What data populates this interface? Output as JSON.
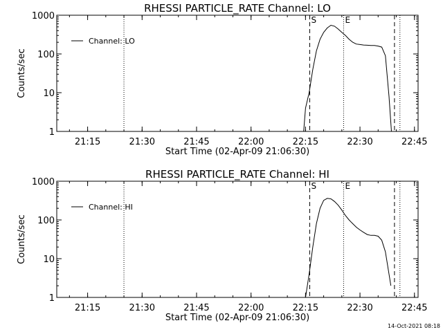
{
  "timestamp": "14-Oct-2021 08:18",
  "chart_data": [
    {
      "type": "line",
      "title": "RHESSI PARTICLE_RATE Channel: LO",
      "xlabel": "Start Time (02-Apr-09 21:06:30)",
      "ylabel": "Counts/sec",
      "yscale": "log",
      "ylim": [
        1,
        1000
      ],
      "y_ticks": [
        "1",
        "10",
        "100",
        "1000"
      ],
      "xlim": [
        "21:06:30",
        "22:46:00"
      ],
      "x_ticks": [
        "21:15",
        "21:30",
        "21:45",
        "22:00",
        "22:15",
        "22:30",
        "22:45"
      ],
      "legend": {
        "position": "top-left",
        "entries": [
          "Channel: LO"
        ]
      },
      "markers": [
        {
          "label": "S",
          "time": "22:16:10",
          "style": "dashed"
        },
        {
          "label": "E",
          "time": "22:25:30",
          "style": "dotted"
        }
      ],
      "vlines": [
        {
          "time": "21:25:00",
          "style": "dotted"
        },
        {
          "time": "22:39:30",
          "style": "dashed"
        },
        {
          "time": "22:41:00",
          "style": "dotted"
        }
      ],
      "series": [
        {
          "name": "Channel: LO",
          "x": [
            "22:14:30",
            "22:15:00",
            "22:16:00",
            "22:17:00",
            "22:18:00",
            "22:19:00",
            "22:20:00",
            "22:21:00",
            "22:22:00",
            "22:23:00",
            "22:24:00",
            "22:25:00",
            "22:26:00",
            "22:27:00",
            "22:28:00",
            "22:29:00",
            "22:30:00",
            "22:31:00",
            "22:32:00",
            "22:33:00",
            "22:34:00",
            "22:35:00",
            "22:36:00",
            "22:37:00",
            "22:38:00",
            "22:38:40"
          ],
          "y": [
            1,
            4,
            10,
            40,
            120,
            240,
            360,
            470,
            550,
            520,
            440,
            360,
            300,
            240,
            200,
            180,
            175,
            170,
            168,
            165,
            165,
            160,
            150,
            90,
            8,
            1
          ]
        }
      ]
    },
    {
      "type": "line",
      "title": "RHESSI PARTICLE_RATE Channel: HI",
      "xlabel": "Start Time (02-Apr-09 21:06:30)",
      "ylabel": "Counts/sec",
      "yscale": "log",
      "ylim": [
        1,
        1000
      ],
      "y_ticks": [
        "1",
        "10",
        "100",
        "1000"
      ],
      "xlim": [
        "21:06:30",
        "22:46:00"
      ],
      "x_ticks": [
        "21:15",
        "21:30",
        "21:45",
        "22:00",
        "22:15",
        "22:30",
        "22:45"
      ],
      "legend": {
        "position": "top-left",
        "entries": [
          "Channel: HI"
        ]
      },
      "markers": [
        {
          "label": "S",
          "time": "22:16:10",
          "style": "dashed"
        },
        {
          "label": "E",
          "time": "22:25:30",
          "style": "dotted"
        }
      ],
      "vlines": [
        {
          "time": "21:25:00",
          "style": "dotted"
        },
        {
          "time": "22:39:30",
          "style": "dashed"
        },
        {
          "time": "22:41:00",
          "style": "dotted"
        }
      ],
      "series": [
        {
          "name": "Channel: HI",
          "x": [
            "22:15:00",
            "22:16:00",
            "22:17:00",
            "22:18:00",
            "22:19:00",
            "22:20:00",
            "22:21:00",
            "22:22:00",
            "22:23:00",
            "22:24:00",
            "22:25:00",
            "22:26:00",
            "22:27:00",
            "22:28:00",
            "22:29:00",
            "22:30:00",
            "22:31:00",
            "22:32:00",
            "22:33:00",
            "22:34:00",
            "22:35:00",
            "22:36:00",
            "22:37:00",
            "22:38:00",
            "22:38:30"
          ],
          "y": [
            1,
            4,
            20,
            80,
            200,
            320,
            360,
            350,
            300,
            240,
            180,
            130,
            100,
            80,
            65,
            55,
            48,
            42,
            40,
            40,
            38,
            30,
            15,
            4,
            2
          ]
        }
      ]
    }
  ]
}
